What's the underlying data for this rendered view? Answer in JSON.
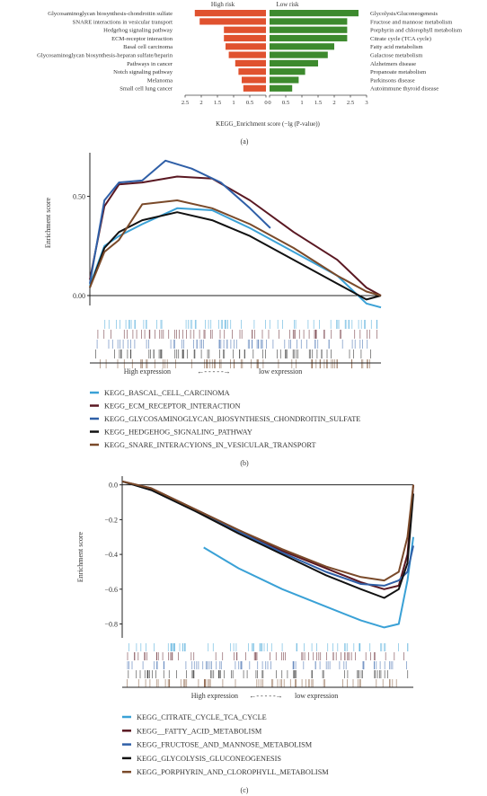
{
  "figure": {
    "panel_labels": [
      "(a)",
      "(b)",
      "(c)"
    ]
  },
  "chart_data": [
    {
      "id": "a",
      "type": "bar",
      "title": "",
      "xlabel": "KEGG_Enrichment score (−lg (P-value))",
      "left_group": {
        "label": "High risk",
        "color": "#e0522f",
        "categories": [
          "Glycosaminoglycan biosynthesis-chondroitin sulfate",
          "SNARE interactions in vesicular transport",
          "Hedgehog signaling pathway",
          "ECM-receptor interaction",
          "Basal cell carcinoma",
          "Glycosaminoglycan biosynthesis-heparan sulfate/heparin",
          "Pathways in cancer",
          "Notch signaling pathway",
          "Melanoma",
          "Small cell lung cancer"
        ],
        "values": [
          2.2,
          2.05,
          1.3,
          1.3,
          1.25,
          1.15,
          0.95,
          0.85,
          0.75,
          0.7
        ]
      },
      "right_group": {
        "label": "Low risk",
        "color": "#3d8a2e",
        "categories": [
          "Glycolysis/Gluconeogenesis",
          "Fructose and mannose metabolism",
          "Porphyrin and chlorophyll metabolism",
          "Citrate cycle (TCA cycle)",
          "Fatty acid metabolism",
          "Galactose metabolism",
          "Alzheimers disease",
          "Propanoate metabolism",
          "Parkinsons disease",
          "Autoimmune thyroid disease"
        ],
        "values": [
          2.75,
          2.4,
          2.4,
          2.4,
          2.0,
          1.8,
          1.5,
          1.1,
          0.9,
          0.7
        ]
      },
      "left_ticks": [
        "2.5",
        "2",
        "1.5",
        "1",
        "0.5",
        "0"
      ],
      "right_ticks": [
        "0",
        "0.5",
        "1",
        "1.5",
        "2",
        "2.5",
        "3"
      ],
      "xlim": [
        0,
        3
      ]
    },
    {
      "id": "b",
      "type": "line",
      "title": "",
      "ylabel": "Enrichment score",
      "xlabel_left": "High expression",
      "xlabel_right": "low expression",
      "ylim": [
        -0.05,
        0.72
      ],
      "yticks": [
        "0.00",
        "0.50"
      ],
      "series": [
        {
          "name": "KEGG_BASCAL_CELL_CARCINOMA",
          "color": "#3aa1d6",
          "x": [
            0.0,
            0.05,
            0.1,
            0.18,
            0.3,
            0.42,
            0.55,
            0.7,
            0.85,
            0.95,
            1.0
          ],
          "y": [
            0.05,
            0.25,
            0.3,
            0.36,
            0.44,
            0.43,
            0.34,
            0.22,
            0.1,
            -0.04,
            -0.06
          ]
        },
        {
          "name": "KEGG_ECM_RECEPTOR_INTERACTION",
          "color": "#5a1822",
          "x": [
            0.0,
            0.05,
            0.1,
            0.18,
            0.3,
            0.42,
            0.55,
            0.7,
            0.85,
            0.95,
            1.0
          ],
          "y": [
            0.08,
            0.45,
            0.56,
            0.57,
            0.6,
            0.59,
            0.48,
            0.32,
            0.18,
            0.04,
            0.0
          ]
        },
        {
          "name": "KEGG_GLYCOSAMINOGLYCAN_BIOSYNTHESIS_CHONDROITIN_SULFATE",
          "color": "#2f5fa7",
          "x": [
            0.0,
            0.05,
            0.1,
            0.18,
            0.26,
            0.35,
            0.45,
            0.55,
            0.62
          ],
          "y": [
            0.06,
            0.48,
            0.57,
            0.58,
            0.68,
            0.64,
            0.57,
            0.44,
            0.34
          ]
        },
        {
          "name": "KEGG_HEDGEHOG_SIGNALING_PATHWAY",
          "color": "#111111",
          "x": [
            0.0,
            0.05,
            0.1,
            0.18,
            0.3,
            0.42,
            0.55,
            0.7,
            0.85,
            0.95,
            1.0
          ],
          "y": [
            0.04,
            0.24,
            0.32,
            0.38,
            0.42,
            0.38,
            0.3,
            0.18,
            0.06,
            -0.02,
            0.0
          ]
        },
        {
          "name": "KEGG_SNARE_INTERACYIONS_IN_VESICULAR_TRANSPORT",
          "color": "#7a4a2a",
          "x": [
            0.0,
            0.05,
            0.1,
            0.18,
            0.3,
            0.42,
            0.55,
            0.7,
            0.85,
            0.95,
            1.0
          ],
          "y": [
            0.04,
            0.22,
            0.28,
            0.46,
            0.48,
            0.44,
            0.36,
            0.24,
            0.1,
            0.02,
            0.0
          ]
        }
      ]
    },
    {
      "id": "c",
      "type": "line",
      "title": "",
      "ylabel": "Enrichment score",
      "xlabel_left": "High expression",
      "xlabel_right": "low expression",
      "ylim": [
        -0.88,
        0.05
      ],
      "yticks": [
        "0.0",
        "−0.2",
        "−0.4",
        "−0.6",
        "−0.8"
      ],
      "series": [
        {
          "name": "KEGG_CITRATE_CYCLE_TCA_CYCLE",
          "color": "#3aa1d6",
          "x": [
            0.28,
            0.4,
            0.55,
            0.7,
            0.82,
            0.9,
            0.95,
            0.98,
            1.0
          ],
          "y": [
            -0.36,
            -0.48,
            -0.6,
            -0.7,
            -0.78,
            -0.82,
            -0.8,
            -0.55,
            -0.3
          ]
        },
        {
          "name": "KEGG__FATTY_ACID_METABOLISM",
          "color": "#5a1822",
          "x": [
            0.0,
            0.1,
            0.25,
            0.4,
            0.55,
            0.7,
            0.82,
            0.9,
            0.95,
            0.98,
            1.0
          ],
          "y": [
            0.02,
            -0.02,
            -0.14,
            -0.26,
            -0.38,
            -0.48,
            -0.56,
            -0.6,
            -0.58,
            -0.4,
            0.0
          ]
        },
        {
          "name": "KEGG_FRUCTOSE_AND_MANNOSE_METABOLISM",
          "color": "#2f5fa7",
          "x": [
            0.0,
            0.1,
            0.25,
            0.4,
            0.55,
            0.7,
            0.82,
            0.9,
            0.95,
            0.98,
            1.0
          ],
          "y": [
            0.02,
            -0.03,
            -0.15,
            -0.27,
            -0.39,
            -0.5,
            -0.57,
            -0.58,
            -0.55,
            -0.5,
            -0.35
          ]
        },
        {
          "name": "KEGG_GLYCOLYSIS_GLUCONEOGENESIS",
          "color": "#111111",
          "x": [
            0.0,
            0.1,
            0.25,
            0.4,
            0.55,
            0.7,
            0.82,
            0.9,
            0.95,
            0.98,
            1.0
          ],
          "y": [
            0.02,
            -0.03,
            -0.15,
            -0.28,
            -0.4,
            -0.52,
            -0.6,
            -0.65,
            -0.6,
            -0.45,
            -0.05
          ]
        },
        {
          "name": "KEGG_PORPHYRIN_AND_CLOROPHYLL_METABOLISM",
          "color": "#7a4a2a",
          "x": [
            0.0,
            0.1,
            0.25,
            0.4,
            0.55,
            0.7,
            0.82,
            0.9,
            0.95,
            0.98,
            1.0
          ],
          "y": [
            0.02,
            -0.02,
            -0.14,
            -0.26,
            -0.37,
            -0.47,
            -0.53,
            -0.55,
            -0.5,
            -0.3,
            0.0
          ]
        }
      ]
    }
  ]
}
